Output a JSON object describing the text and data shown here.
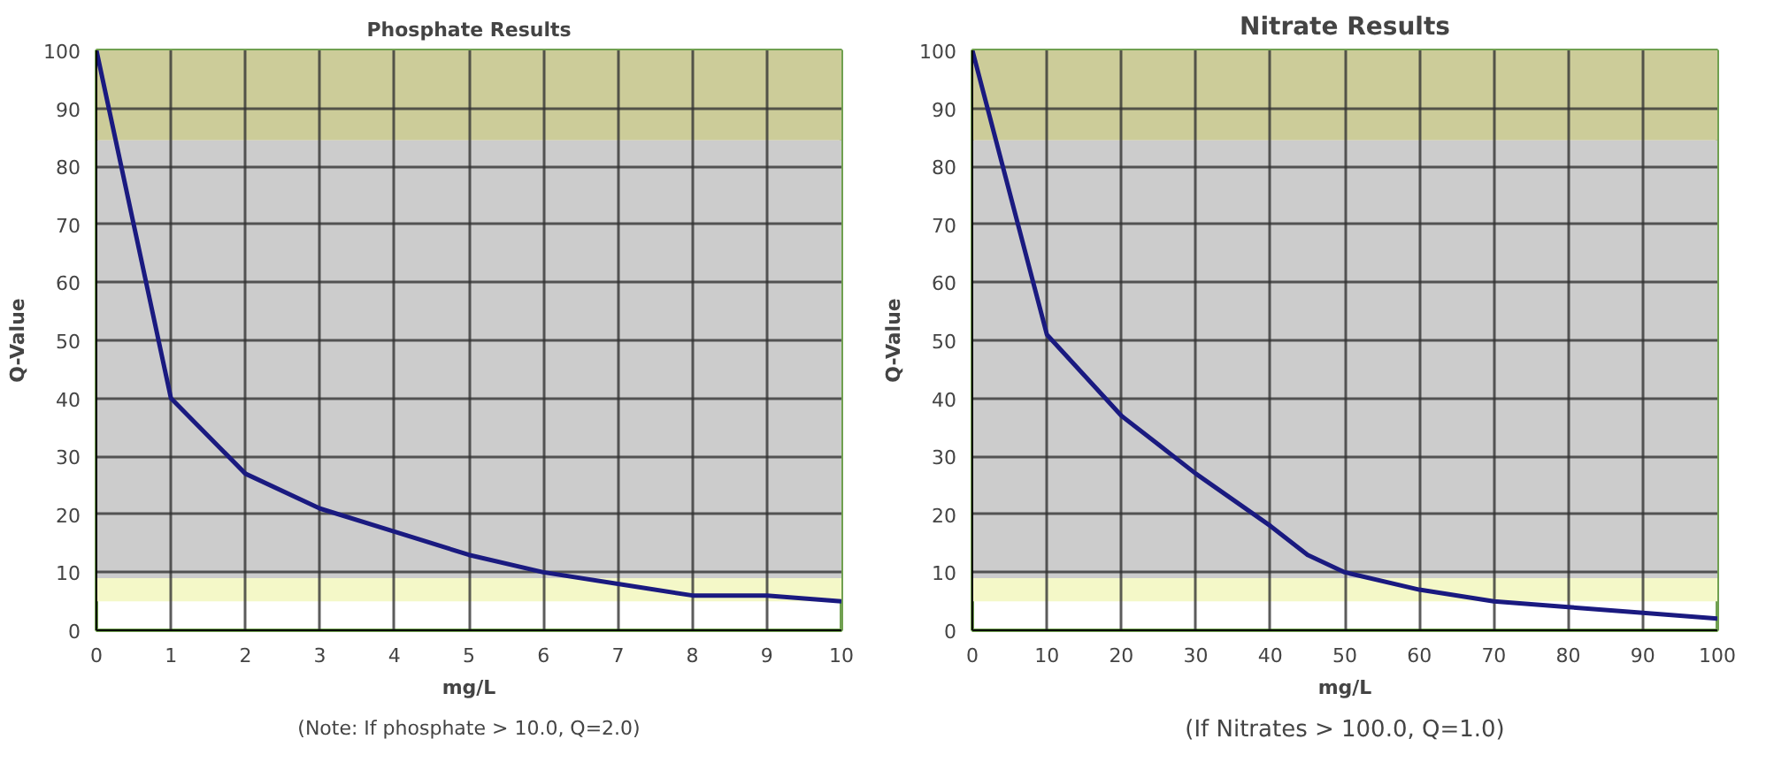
{
  "chart_data": [
    {
      "type": "line",
      "title": "Phosphate Results",
      "xlabel": "mg/L",
      "ylabel": "Q-Value",
      "x": [
        0,
        1,
        2,
        3,
        4,
        5,
        6,
        7,
        8,
        9,
        10
      ],
      "series": [
        {
          "color": "#1a1a80",
          "values": [
            100,
            40,
            27,
            21,
            17,
            13,
            10,
            8,
            6,
            6,
            5
          ]
        }
      ],
      "xlim": [
        0,
        10
      ],
      "ylim": [
        0,
        100
      ],
      "xticks": [
        0,
        1,
        2,
        3,
        4,
        5,
        6,
        7,
        8,
        9,
        10
      ],
      "yticks": [
        0,
        10,
        20,
        30,
        40,
        50,
        60,
        70,
        80,
        90,
        100
      ],
      "grid": true,
      "marker": "none",
      "line_style": "solid",
      "bands": [
        {
          "axis": "y",
          "from": 84.5,
          "to": 100,
          "color": "#cccc99"
        },
        {
          "axis": "y",
          "from": 9,
          "to": 84.5,
          "color": "#cccccc"
        },
        {
          "axis": "y",
          "from": 5,
          "to": 9,
          "color": "#f4f8c8"
        }
      ],
      "annotations": [
        "(Note: If phosphate > 10.0, Q=2.0)"
      ]
    },
    {
      "type": "line",
      "title": "Nitrate Results",
      "xlabel": "mg/L",
      "ylabel": "Q-Value",
      "x": [
        0,
        10,
        20,
        25,
        30,
        40,
        45,
        50,
        60,
        70,
        80,
        90,
        100
      ],
      "series": [
        {
          "color": "#1a1a80",
          "values": [
            100,
            51,
            37,
            32,
            27,
            18,
            13,
            10,
            7,
            5,
            4,
            3,
            2
          ]
        }
      ],
      "xlim": [
        0,
        100
      ],
      "ylim": [
        0,
        100
      ],
      "xticks": [
        0,
        10,
        20,
        30,
        40,
        50,
        60,
        70,
        80,
        90,
        100
      ],
      "yticks": [
        0,
        10,
        20,
        30,
        40,
        50,
        60,
        70,
        80,
        90,
        100
      ],
      "grid": true,
      "marker": "none",
      "line_style": "solid",
      "bands": [
        {
          "axis": "y",
          "from": 84.5,
          "to": 100,
          "color": "#cccc99"
        },
        {
          "axis": "y",
          "from": 9,
          "to": 84.5,
          "color": "#cccccc"
        },
        {
          "axis": "y",
          "from": 5,
          "to": 9,
          "color": "#f4f8c8"
        }
      ],
      "annotations": [
        "(If Nitrates > 100.0, Q=1.0)"
      ]
    }
  ]
}
